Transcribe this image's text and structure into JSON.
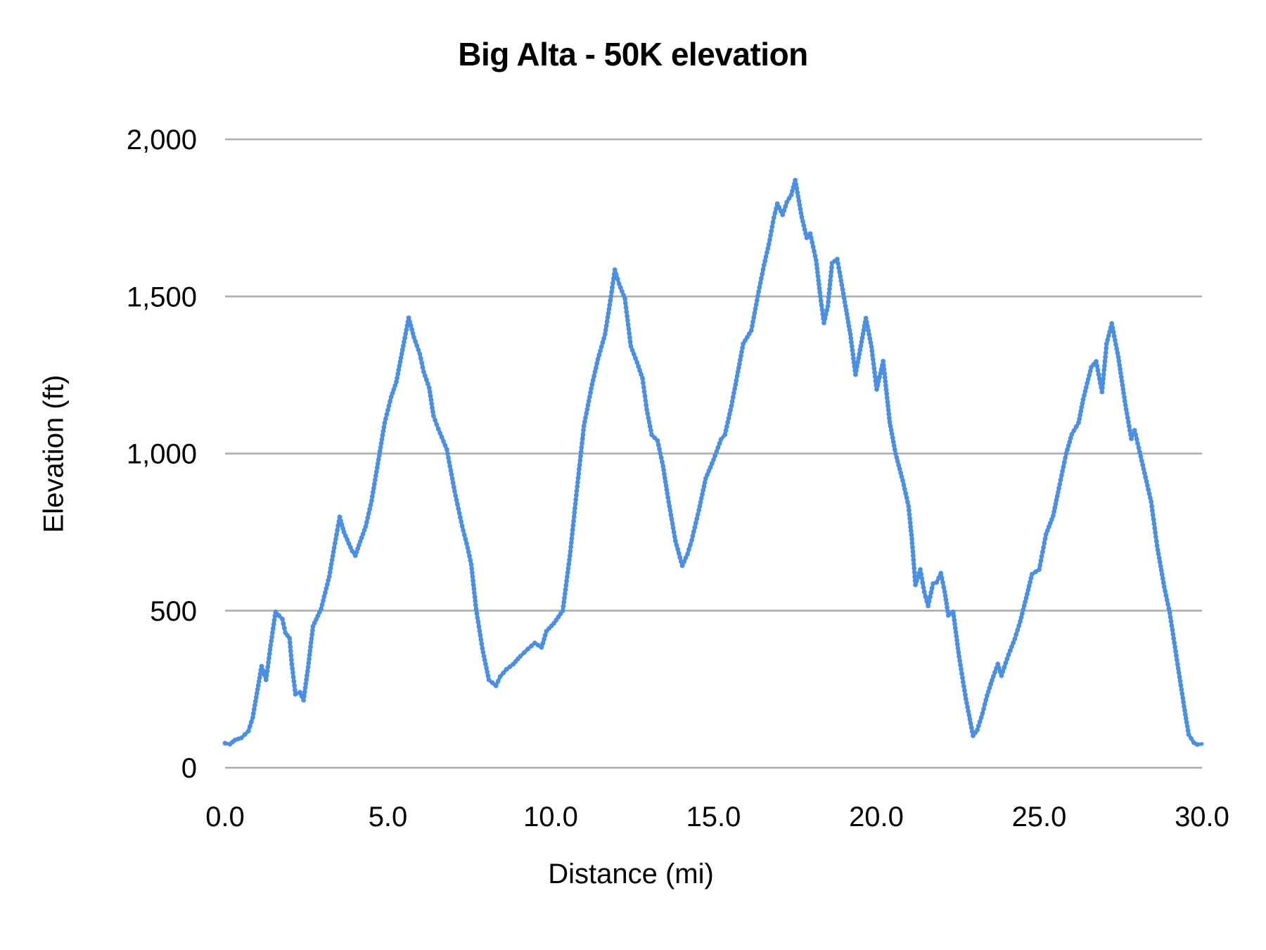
{
  "chart_data": {
    "type": "line",
    "title": "Big Alta - 50K elevation",
    "xlabel": "Distance (mi)",
    "ylabel": "Elevation (ft)",
    "xlim": [
      0,
      30
    ],
    "ylim": [
      0,
      2000
    ],
    "x_ticks": [
      "0.0",
      "5.0",
      "10.0",
      "15.0",
      "20.0",
      "25.0",
      "30.0"
    ],
    "y_ticks": [
      "0",
      "500",
      "1,000",
      "1,500",
      "2,000"
    ],
    "grid": "horizontal",
    "legend": "none",
    "series": [
      {
        "name": "Elevation",
        "color": "#4a8fe2",
        "x": [
          0.0,
          0.15,
          0.3,
          0.5,
          0.72,
          0.85,
          1.0,
          1.12,
          1.26,
          1.4,
          1.55,
          1.76,
          1.85,
          1.98,
          2.05,
          2.16,
          2.3,
          2.41,
          2.55,
          2.7,
          2.95,
          3.2,
          3.35,
          3.52,
          3.65,
          3.75,
          3.9,
          4.0,
          4.15,
          4.32,
          4.5,
          4.65,
          4.9,
          5.1,
          5.26,
          5.45,
          5.64,
          5.8,
          5.98,
          6.1,
          6.27,
          6.4,
          6.55,
          6.81,
          7.05,
          7.28,
          7.45,
          7.56,
          7.71,
          7.9,
          8.1,
          8.32,
          8.45,
          8.64,
          8.85,
          9.07,
          9.3,
          9.51,
          9.72,
          9.87,
          10.1,
          10.37,
          10.59,
          10.8,
          11.02,
          11.27,
          11.45,
          11.67,
          11.85,
          11.97,
          12.1,
          12.28,
          12.46,
          12.65,
          12.82,
          12.95,
          13.1,
          13.28,
          13.45,
          13.6,
          13.83,
          14.04,
          14.2,
          14.33,
          14.55,
          14.76,
          15.0,
          15.23,
          15.35,
          15.55,
          15.75,
          15.91,
          16.16,
          16.41,
          16.55,
          16.7,
          16.85,
          16.96,
          17.12,
          17.25,
          17.39,
          17.51,
          17.71,
          17.86,
          17.97,
          18.15,
          18.28,
          18.39,
          18.51,
          18.64,
          18.8,
          19.01,
          19.2,
          19.36,
          19.5,
          19.68,
          19.85,
          20.01,
          20.21,
          20.41,
          20.59,
          20.81,
          20.99,
          21.09,
          21.2,
          21.35,
          21.47,
          21.59,
          21.74,
          21.85,
          21.98,
          22.1,
          22.21,
          22.36,
          22.54,
          22.75,
          22.97,
          23.1,
          23.26,
          23.4,
          23.55,
          23.73,
          23.84,
          24.06,
          24.25,
          24.42,
          24.6,
          24.78,
          25.0,
          25.21,
          25.43,
          25.63,
          25.83,
          26.0,
          26.21,
          26.35,
          26.6,
          26.75,
          26.93,
          27.07,
          27.23,
          27.43,
          27.65,
          27.83,
          27.93,
          28.15,
          28.44,
          28.62,
          28.84,
          29.01,
          29.27,
          29.45,
          29.59,
          29.75,
          29.85,
          30.0
        ],
        "y": [
          78,
          75,
          88,
          95,
          117,
          160,
          250,
          323,
          280,
          390,
          496,
          473,
          430,
          412,
          330,
          234,
          240,
          215,
          320,
          450,
          506,
          609,
          700,
          798,
          750,
          726,
          690,
          675,
          720,
          768,
          850,
          942,
          1097,
          1180,
          1228,
          1330,
          1432,
          1370,
          1317,
          1260,
          1209,
          1120,
          1078,
          1013,
          880,
          769,
          700,
          647,
          505,
          380,
          280,
          261,
          290,
          313,
          330,
          355,
          378,
          397,
          383,
          435,
          460,
          500,
          675,
          881,
          1088,
          1220,
          1300,
          1380,
          1500,
          1585,
          1540,
          1492,
          1342,
          1290,
          1239,
          1140,
          1060,
          1041,
          960,
          860,
          722,
          643,
          680,
          724,
          820,
          921,
          980,
          1045,
          1060,
          1152,
          1260,
          1349,
          1392,
          1529,
          1600,
          1666,
          1750,
          1795,
          1760,
          1800,
          1824,
          1870,
          1752,
          1687,
          1700,
          1615,
          1500,
          1416,
          1469,
          1606,
          1619,
          1495,
          1380,
          1251,
          1330,
          1431,
          1340,
          1204,
          1294,
          1100,
          1000,
          914,
          832,
          728,
          582,
          631,
          560,
          515,
          586,
          590,
          619,
          560,
          485,
          496,
          354,
          219,
          102,
          120,
          173,
          230,
          278,
          330,
          293,
          360,
          410,
          466,
          540,
          616,
          631,
          743,
          802,
          902,
          1000,
          1061,
          1098,
          1172,
          1275,
          1293,
          1196,
          1349,
          1414,
          1307,
          1154,
          1047,
          1074,
          977,
          846,
          707,
          576,
          493,
          316,
          195,
          106,
          80,
          74,
          76
        ]
      }
    ]
  },
  "style": {
    "line_color": "#4a8fe2",
    "grid_color": "#aaaaaa",
    "text_color": "#000000"
  }
}
